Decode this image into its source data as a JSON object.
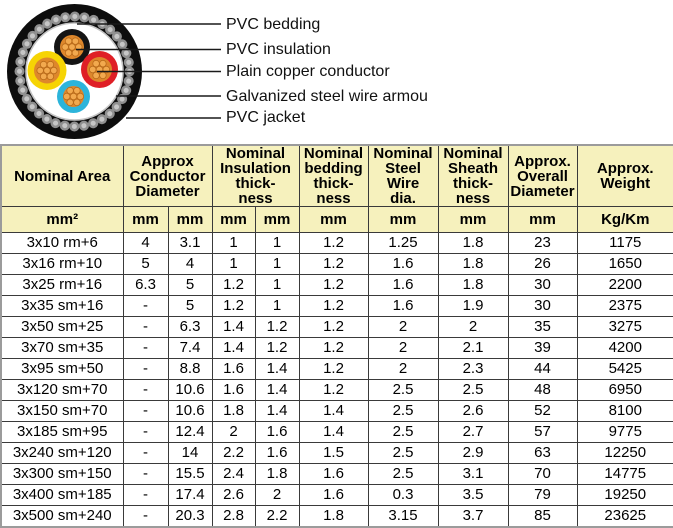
{
  "diagram": {
    "labels": [
      "PVC bedding",
      "PVC insulation",
      "Plain copper conductor",
      "Galvanized steel wire armou",
      "PVC jacket"
    ],
    "colors": {
      "jacket": "#0d0d0d",
      "armour_bead": "#8f8f8f",
      "armour_bead_highlight": "#c6c6c6",
      "bedding": "#ffffff",
      "bedding_outline": "#c4c4c4",
      "insulation_top": "#141414",
      "insulation_right": "#df1f26",
      "insulation_left": "#f6d404",
      "insulation_bottom": "#2cb4da",
      "copper": "#de872b",
      "strand": "#f2a94e",
      "strand_outline": "#b86a1a",
      "leader_line": "#1a1a1a"
    }
  },
  "table": {
    "colors": {
      "header_bg": "#f6f1bd",
      "border": "#3a3a3a",
      "outer_border": "#9b9b9b",
      "row_bg": "#ffffff"
    },
    "header_groups": [
      {
        "label": "Nominal Area",
        "colspan": 1
      },
      {
        "label": "Approx\nConductor\nDiameter",
        "colspan": 2
      },
      {
        "label": "Nominal\nInsulation\nthick-\nness",
        "colspan": 2
      },
      {
        "label": "Nominal\nbedding\nthick-\nness",
        "colspan": 1
      },
      {
        "label": "Nominal\nSteel\nWire\ndia.",
        "colspan": 1
      },
      {
        "label": "Nominal\nSheath\nthick-\nness",
        "colspan": 1
      },
      {
        "label": "Approx.\nOverall\nDiameter",
        "colspan": 1
      },
      {
        "label": "Approx.\nWeight",
        "colspan": 1
      }
    ],
    "units": [
      "mm²",
      "mm",
      "mm",
      "mm",
      "mm",
      "mm",
      "mm",
      "mm",
      "mm",
      "Kg/Km"
    ],
    "rows": [
      [
        "3x10 rm+6",
        "4",
        "3.1",
        "1",
        "1",
        "1.2",
        "1.25",
        "1.8",
        "23",
        "1175"
      ],
      [
        "3x16 rm+10",
        "5",
        "4",
        "1",
        "1",
        "1.2",
        "1.6",
        "1.8",
        "26",
        "1650"
      ],
      [
        "3x25 rm+16",
        "6.3",
        "5",
        "1.2",
        "1",
        "1.2",
        "1.6",
        "1.8",
        "30",
        "2200"
      ],
      [
        "3x35 sm+16",
        "-",
        "5",
        "1.2",
        "1",
        "1.2",
        "1.6",
        "1.9",
        "30",
        "2375"
      ],
      [
        "3x50 sm+25",
        "-",
        "6.3",
        "1.4",
        "1.2",
        "1.2",
        "2",
        "2",
        "35",
        "3275"
      ],
      [
        "3x70 sm+35",
        "-",
        "7.4",
        "1.4",
        "1.2",
        "1.2",
        "2",
        "2.1",
        "39",
        "4200"
      ],
      [
        "3x95 sm+50",
        "-",
        "8.8",
        "1.6",
        "1.4",
        "1.2",
        "2",
        "2.3",
        "44",
        "5425"
      ],
      [
        "3x120 sm+70",
        "-",
        "10.6",
        "1.6",
        "1.4",
        "1.2",
        "2.5",
        "2.5",
        "48",
        "6950"
      ],
      [
        "3x150 sm+70",
        "-",
        "10.6",
        "1.8",
        "1.4",
        "1.4",
        "2.5",
        "2.6",
        "52",
        "8100"
      ],
      [
        "3x185 sm+95",
        "-",
        "12.4",
        "2",
        "1.6",
        "1.4",
        "2.5",
        "2.7",
        "57",
        "9775"
      ],
      [
        "3x240 sm+120",
        "-",
        "14",
        "2.2",
        "1.6",
        "1.5",
        "2.5",
        "2.9",
        "63",
        "12250"
      ],
      [
        "3x300 sm+150",
        "-",
        "15.5",
        "2.4",
        "1.8",
        "1.6",
        "2.5",
        "3.1",
        "70",
        "14775"
      ],
      [
        "3x400 sm+185",
        "-",
        "17.4",
        "2.6",
        "2",
        "1.6",
        "0.3",
        "3.5",
        "79",
        "19250"
      ],
      [
        "3x500 sm+240",
        "-",
        "20.3",
        "2.8",
        "2.2",
        "1.8",
        "3.15",
        "3.7",
        "85",
        "23625"
      ]
    ]
  }
}
